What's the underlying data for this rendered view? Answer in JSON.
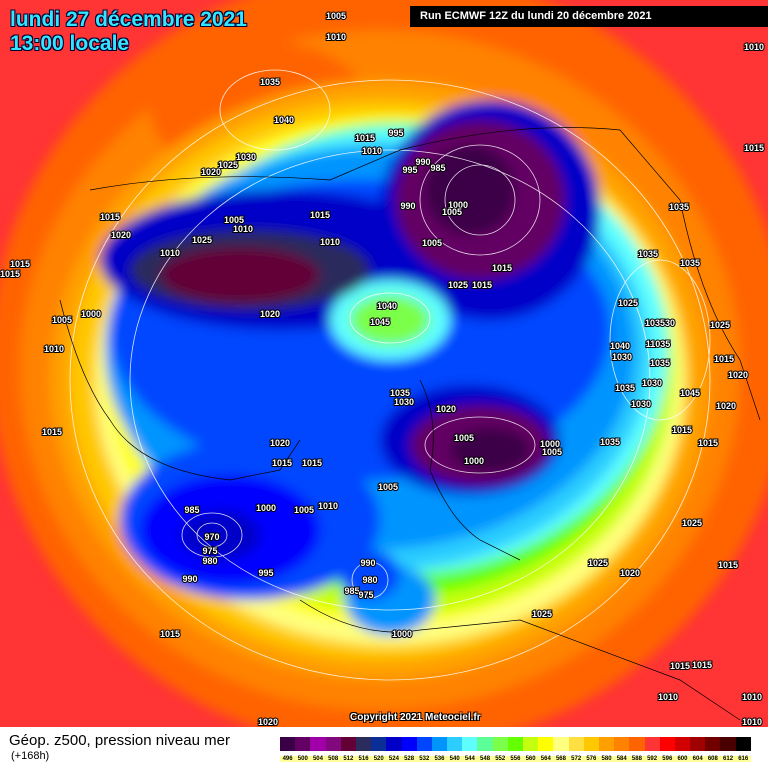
{
  "header": {
    "date_line": "lundi 27 décembre 2021",
    "time_line": "13:00 locale",
    "run_info": "Run ECMWF 12Z du lundi 20 décembre 2021"
  },
  "copyright": "Copyright 2021 Meteociel.fr",
  "footer": {
    "title": "Géop. z500, pression niveau mer",
    "lead_time": "(+168h)"
  },
  "legend": {
    "unit_levels": [
      "496",
      "500",
      "504",
      "508",
      "512",
      "516",
      "520",
      "524",
      "528",
      "532",
      "536",
      "540",
      "544",
      "548",
      "552",
      "556",
      "560",
      "564",
      "568",
      "572",
      "576",
      "580",
      "584",
      "588",
      "592",
      "596",
      "600",
      "604",
      "608",
      "612",
      "616"
    ],
    "colors": [
      "#3a0046",
      "#640064",
      "#a000a8",
      "#82087e",
      "#640038",
      "#2c2c5c",
      "#0a2e96",
      "#0000c8",
      "#0000ff",
      "#0046ff",
      "#0094ff",
      "#2ccdff",
      "#5effff",
      "#5cff98",
      "#7cff48",
      "#64ff00",
      "#c4ff10",
      "#ffff00",
      "#ffff80",
      "#ffe040",
      "#ffc800",
      "#ffa000",
      "#ff8200",
      "#ff6400",
      "#ff3434",
      "#ff0000",
      "#d20000",
      "#a00000",
      "#700000",
      "#4a0000",
      "#000000"
    ]
  },
  "isobar_labels": [
    "1005",
    "1010",
    "1010",
    "1035",
    "1040",
    "1015",
    "995",
    "1010",
    "1030",
    "1025",
    "1020",
    "990",
    "995",
    "985",
    "990",
    "1000",
    "1005",
    "1015",
    "1035",
    "1015",
    "1005",
    "1015",
    "1020",
    "1010",
    "1025",
    "1010",
    "1010",
    "1005",
    "1015",
    "1025",
    "1015",
    "1035",
    "1035",
    "1015",
    "1015",
    "1005",
    "1000",
    "1025",
    "1020",
    "1040",
    "1045",
    "103530",
    "1025",
    "1040",
    "11035",
    "1030",
    "1035",
    "1010",
    "1015",
    "1020",
    "1035",
    "1030",
    "1035",
    "1030",
    "1020",
    "1045",
    "1020",
    "1030",
    "1015",
    "1015",
    "1005",
    "1000",
    "1005",
    "1000",
    "1035",
    "1015",
    "1020",
    "1015",
    "1015",
    "1005",
    "985",
    "1000",
    "1005",
    "1010",
    "970",
    "975",
    "980",
    "1025",
    "990",
    "995",
    "990",
    "980",
    "985",
    "975",
    "1025",
    "1020",
    "1015",
    "1025",
    "1015",
    "1000",
    "1015",
    "1015",
    "1010",
    "1010",
    "1010",
    "1020"
  ]
}
